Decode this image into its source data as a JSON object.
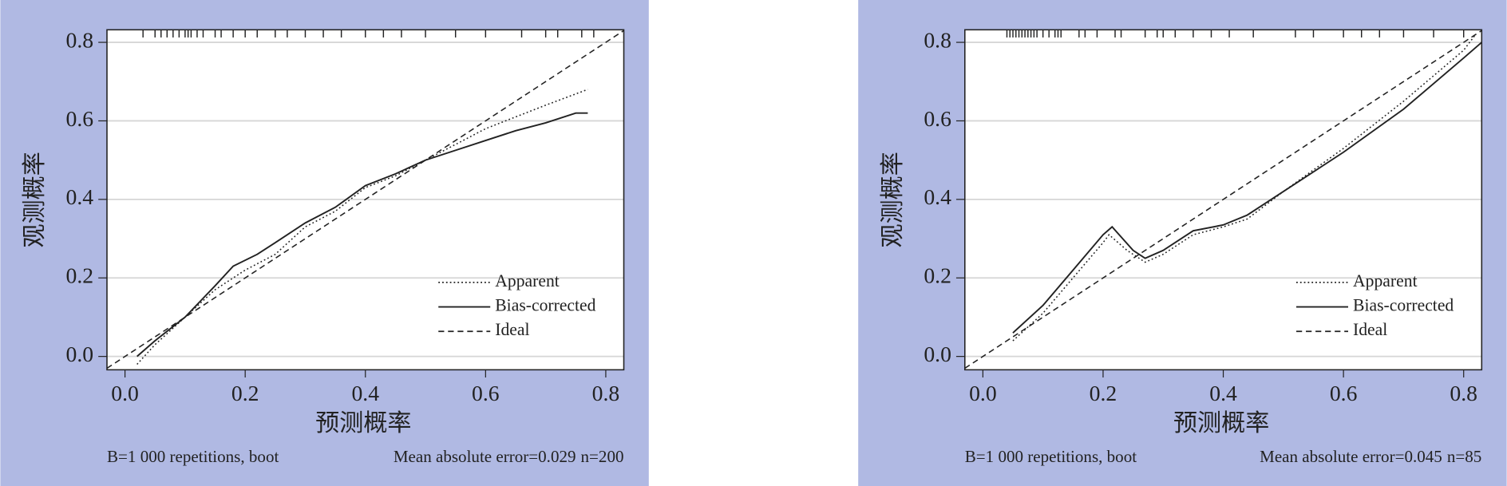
{
  "chart_data": [
    {
      "type": "line",
      "ylabel": "观测概率",
      "xlabel": "预测概率",
      "xlim": [
        -0.03,
        0.83
      ],
      "ylim": [
        -0.034,
        0.832
      ],
      "xticks": [
        {
          "value": 0,
          "label": "0.0"
        },
        0.2,
        0.4,
        0.6,
        0.8
      ],
      "yticks": [
        {
          "value": 0,
          "label": "0.0"
        },
        0.2,
        0.4,
        0.6,
        0.8
      ],
      "grid": true,
      "legend": "lower right",
      "rug_x": [
        0.03,
        0.05,
        0.06,
        0.07,
        0.08,
        0.09,
        0.1,
        0.105,
        0.11,
        0.12,
        0.13,
        0.15,
        0.16,
        0.18,
        0.2,
        0.22,
        0.25,
        0.27,
        0.3,
        0.33,
        0.36,
        0.4,
        0.43,
        0.46,
        0.5,
        0.55,
        0.6,
        0.66,
        0.7,
        0.72,
        0.76,
        0.78
      ],
      "series": [
        {
          "name": "Apparent",
          "color": "#222222",
          "dash": "dotted",
          "x": [
            0.02,
            0.05,
            0.1,
            0.15,
            0.2,
            0.25,
            0.3,
            0.35,
            0.4,
            0.45,
            0.5,
            0.55,
            0.6,
            0.65,
            0.7,
            0.77
          ],
          "values": [
            -0.02,
            0.03,
            0.1,
            0.17,
            0.22,
            0.26,
            0.33,
            0.37,
            0.43,
            0.46,
            0.5,
            0.54,
            0.58,
            0.61,
            0.64,
            0.68
          ]
        },
        {
          "name": "Bias-corrected",
          "color": "#222222",
          "dash": "solid",
          "x": [
            0.02,
            0.05,
            0.1,
            0.15,
            0.18,
            0.22,
            0.25,
            0.3,
            0.35,
            0.4,
            0.45,
            0.5,
            0.55,
            0.6,
            0.65,
            0.7,
            0.75,
            0.77
          ],
          "values": [
            0,
            0.04,
            0.1,
            0.18,
            0.23,
            0.26,
            0.29,
            0.34,
            0.38,
            0.435,
            0.465,
            0.5,
            0.525,
            0.55,
            0.575,
            0.595,
            0.62,
            0.62
          ]
        },
        {
          "name": "Ideal",
          "color": "#222222",
          "dash": "dashed",
          "x": [
            -0.03,
            0.83
          ],
          "values": [
            -0.03,
            0.83
          ]
        }
      ],
      "note_left": "B=1 000 repetitions, boot",
      "note_error": "Mean absolute error=0.029",
      "note_n": "n=200"
    },
    {
      "type": "line",
      "ylabel": "观测概率",
      "xlabel": "预测概率",
      "xlim": [
        -0.03,
        0.83
      ],
      "ylim": [
        -0.034,
        0.832
      ],
      "xticks": [
        {
          "value": 0,
          "label": "0.0"
        },
        0.2,
        0.4,
        0.6,
        0.8
      ],
      "yticks": [
        {
          "value": 0,
          "label": "0.0"
        },
        0.2,
        0.4,
        0.6,
        0.8
      ],
      "grid": true,
      "legend": "lower right",
      "rug_x": [
        0.04,
        0.045,
        0.05,
        0.055,
        0.06,
        0.065,
        0.07,
        0.075,
        0.08,
        0.085,
        0.09,
        0.1,
        0.11,
        0.12,
        0.125,
        0.13,
        0.16,
        0.17,
        0.19,
        0.22,
        0.23,
        0.27,
        0.29,
        0.3,
        0.32,
        0.35,
        0.38,
        0.41,
        0.45,
        0.52,
        0.55,
        0.6,
        0.63,
        0.66,
        0.7,
        0.75,
        0.8
      ],
      "series": [
        {
          "name": "Apparent",
          "color": "#222222",
          "dash": "dotted",
          "x": [
            0.05,
            0.1,
            0.15,
            0.2,
            0.21,
            0.24,
            0.27,
            0.3,
            0.35,
            0.4,
            0.44,
            0.5,
            0.6,
            0.7,
            0.8,
            0.82
          ],
          "values": [
            0.04,
            0.11,
            0.2,
            0.29,
            0.31,
            0.27,
            0.24,
            0.26,
            0.31,
            0.33,
            0.35,
            0.42,
            0.53,
            0.65,
            0.78,
            0.82
          ]
        },
        {
          "name": "Bias-corrected",
          "color": "#222222",
          "dash": "solid",
          "x": [
            0.05,
            0.1,
            0.15,
            0.2,
            0.215,
            0.25,
            0.27,
            0.3,
            0.35,
            0.4,
            0.44,
            0.5,
            0.6,
            0.7,
            0.8,
            0.83
          ],
          "values": [
            0.06,
            0.13,
            0.22,
            0.31,
            0.33,
            0.27,
            0.25,
            0.27,
            0.32,
            0.335,
            0.36,
            0.42,
            0.52,
            0.63,
            0.76,
            0.8
          ]
        },
        {
          "name": "Ideal",
          "color": "#222222",
          "dash": "dashed",
          "x": [
            -0.03,
            0.83
          ],
          "values": [
            -0.03,
            0.83
          ]
        }
      ],
      "note_left": "B=1 000 repetitions, boot",
      "note_error": "Mean absolute error=0.045",
      "note_n": "n=85"
    }
  ]
}
